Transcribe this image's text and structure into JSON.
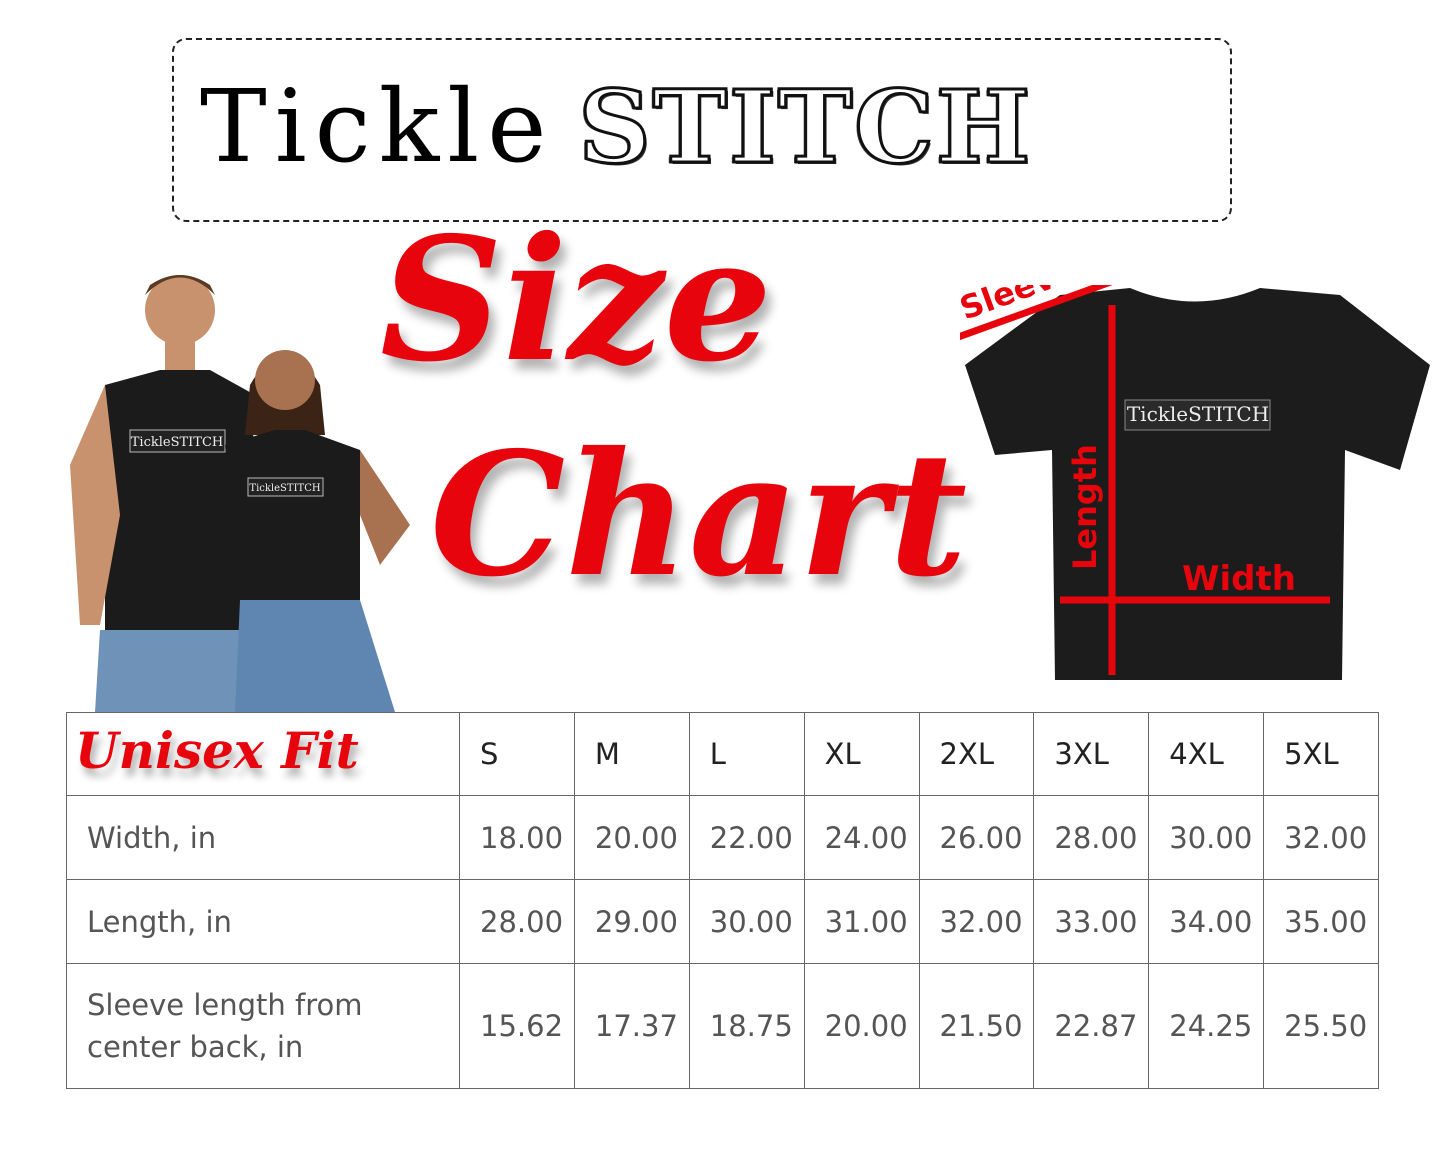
{
  "logo": {
    "part1": "Tickle",
    "part2": "STITCH"
  },
  "title": {
    "line1": "Size",
    "line2": "Chart"
  },
  "diagram": {
    "sleeve": "Sleeve",
    "length": "Length",
    "width": "Width",
    "shirt_print": "TickleSTITCH",
    "accent": "#e8040c"
  },
  "people": {
    "shirt_print": "TickleSTITCH"
  },
  "table": {
    "corner": "Unisex Fit",
    "sizes": [
      "S",
      "M",
      "L",
      "XL",
      "2XL",
      "3XL",
      "4XL",
      "5XL"
    ],
    "rows": [
      {
        "label": "Width, in",
        "values": [
          "18.00",
          "20.00",
          "22.00",
          "24.00",
          "26.00",
          "28.00",
          "30.00",
          "32.00"
        ]
      },
      {
        "label": "Length, in",
        "values": [
          "28.00",
          "29.00",
          "30.00",
          "31.00",
          "32.00",
          "33.00",
          "34.00",
          "35.00"
        ]
      },
      {
        "label": "Sleeve length from center back, in",
        "values": [
          "15.62",
          "17.37",
          "18.75",
          "20.00",
          "21.50",
          "22.87",
          "24.25",
          "25.50"
        ]
      }
    ]
  }
}
